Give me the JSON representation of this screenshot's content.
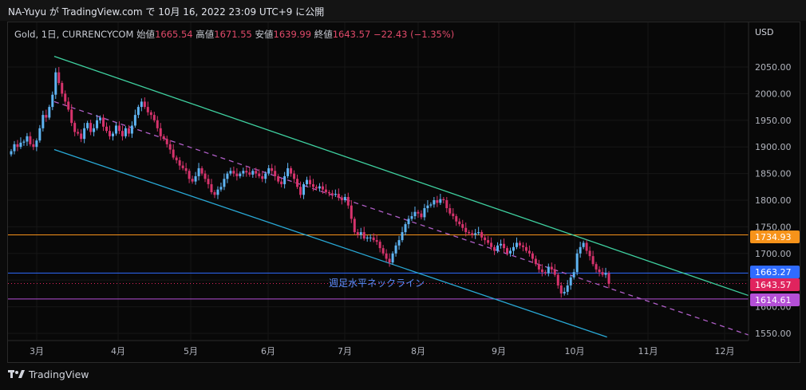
{
  "header": {
    "publisher_line": "NA-Yuyu が TradingView.com で 10月 16, 2022 23:09 UTC+9 に公開"
  },
  "legend": {
    "symbol": "Gold, 1日, CURRENCYCOM",
    "open_label": "始値",
    "open": "1665.54",
    "high_label": "高値",
    "high": "1671.55",
    "low_label": "安値",
    "low": "1639.99",
    "close_label": "終値",
    "close": "1643.57",
    "change": "−22.43 (−1.35%)"
  },
  "footer": {
    "brand": "TradingView"
  },
  "chart_data": {
    "type": "candlestick",
    "currency": "USD",
    "y_axis": {
      "ticks": [
        2050,
        2000,
        1950,
        1900,
        1850,
        1800,
        1750,
        1700,
        1650,
        1600,
        1550
      ],
      "tick_labels": [
        "2050.00",
        "2000.00",
        "1950.00",
        "1900.00",
        "1850.00",
        "1800.00",
        "1750.00",
        "1700.00",
        "1650.00",
        "1600.00",
        "1550.00"
      ],
      "range": [
        1543,
        2115
      ]
    },
    "x_axis": {
      "ticks": [
        "3月",
        "4月",
        "5月",
        "6月",
        "7月",
        "8月",
        "9月",
        "10月",
        "11月",
        "12月"
      ]
    },
    "price_tags": [
      {
        "value": "1734.93",
        "color": "#f7931a"
      },
      {
        "value": "1663.27",
        "color": "#2f6bff"
      },
      {
        "value": "1643.57",
        "color": "#e0245e"
      },
      {
        "value": "1614.61",
        "color": "#b44fd6"
      }
    ],
    "horizontal_lines": [
      {
        "price": 1734.93,
        "color": "#f7931a",
        "style": "solid"
      },
      {
        "price": 1663.27,
        "color": "#2f6bff",
        "style": "solid"
      },
      {
        "price": 1643.57,
        "color": "#e0245e",
        "style": "dotted"
      },
      {
        "price": 1614.61,
        "color": "#b44fd6",
        "style": "solid"
      }
    ],
    "annotation": {
      "text": "週足水平ネックライン",
      "color": "#5b8dff"
    },
    "trend_lines": [
      {
        "name": "channel-upper",
        "color": "#3fd1a0",
        "style": "solid",
        "from": [
          "2022-03-08",
          2070
        ],
        "to": [
          "2022-12-31",
          1621
        ]
      },
      {
        "name": "channel-mid",
        "color": "#b05fc8",
        "style": "dashed",
        "from": [
          "2022-03-08",
          1985
        ],
        "to": [
          "2022-12-31",
          1547
        ]
      },
      {
        "name": "channel-lower",
        "color": "#29a9d6",
        "style": "solid",
        "from": [
          "2022-03-08",
          1895
        ],
        "to": [
          "2022-10-15",
          1543
        ]
      }
    ],
    "closes": [
      1892,
      1905,
      1900,
      1908,
      1910,
      1920,
      1905,
      1900,
      1912,
      1935,
      1960,
      1955,
      1975,
      1998,
      2040,
      2020,
      2000,
      1985,
      1970,
      1945,
      1928,
      1925,
      1915,
      1935,
      1945,
      1928,
      1935,
      1950,
      1955,
      1938,
      1930,
      1920,
      1925,
      1940,
      1930,
      1920,
      1935,
      1925,
      1940,
      1960,
      1975,
      1985,
      1975,
      1965,
      1960,
      1950,
      1935,
      1920,
      1915,
      1905,
      1895,
      1880,
      1875,
      1865,
      1860,
      1855,
      1840,
      1835,
      1845,
      1860,
      1850,
      1840,
      1830,
      1815,
      1810,
      1820,
      1825,
      1840,
      1850,
      1855,
      1850,
      1845,
      1850,
      1855,
      1852,
      1848,
      1855,
      1850,
      1845,
      1840,
      1850,
      1860,
      1855,
      1845,
      1835,
      1830,
      1845,
      1860,
      1850,
      1840,
      1825,
      1810,
      1830,
      1838,
      1830,
      1825,
      1822,
      1826,
      1820,
      1815,
      1813,
      1810,
      1812,
      1805,
      1800,
      1806,
      1790,
      1765,
      1740,
      1735,
      1740,
      1728,
      1730,
      1730,
      1725,
      1722,
      1710,
      1700,
      1690,
      1683,
      1700,
      1715,
      1725,
      1740,
      1755,
      1765,
      1770,
      1778,
      1775,
      1768,
      1785,
      1790,
      1792,
      1800,
      1795,
      1802,
      1800,
      1785,
      1775,
      1770,
      1760,
      1755,
      1748,
      1740,
      1738,
      1735,
      1738,
      1740,
      1730,
      1725,
      1720,
      1712,
      1705,
      1715,
      1718,
      1710,
      1700,
      1705,
      1712,
      1720,
      1715,
      1712,
      1705,
      1700,
      1690,
      1680,
      1670,
      1665,
      1663,
      1675,
      1670,
      1660,
      1640,
      1625,
      1628,
      1640,
      1655,
      1665,
      1700,
      1712,
      1720,
      1705,
      1695,
      1680,
      1670,
      1665,
      1660,
      1663,
      1643
    ]
  }
}
